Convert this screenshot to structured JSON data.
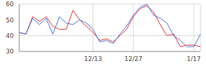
{
  "chart_data": {
    "type": "line",
    "categories": [
      null,
      null,
      null,
      null,
      null,
      null,
      null,
      null,
      null,
      null,
      null,
      "12/13",
      null,
      null,
      null,
      null,
      null,
      "12/27",
      null,
      null,
      null,
      null,
      null,
      null,
      null,
      null,
      "1/17",
      null
    ],
    "series": [
      {
        "color": "#e03030",
        "values": [
          42,
          41,
          52,
          49,
          52,
          46,
          44,
          44,
          56,
          50,
          46,
          42,
          37,
          38,
          36,
          40,
          44,
          52,
          57,
          59,
          55,
          47,
          40,
          41,
          33,
          34,
          34,
          33
        ]
      },
      {
        "color": "#4a6fd6",
        "values": [
          42,
          41,
          51,
          47,
          51,
          41,
          52,
          48,
          47,
          50,
          48,
          44,
          36,
          37,
          35,
          41,
          46,
          53,
          58,
          60,
          53,
          51,
          48,
          40,
          37,
          33,
          33,
          41
        ]
      }
    ],
    "ylim": [
      30,
      60
    ],
    "yticks": [
      30,
      40,
      50,
      60
    ],
    "grid": true
  }
}
